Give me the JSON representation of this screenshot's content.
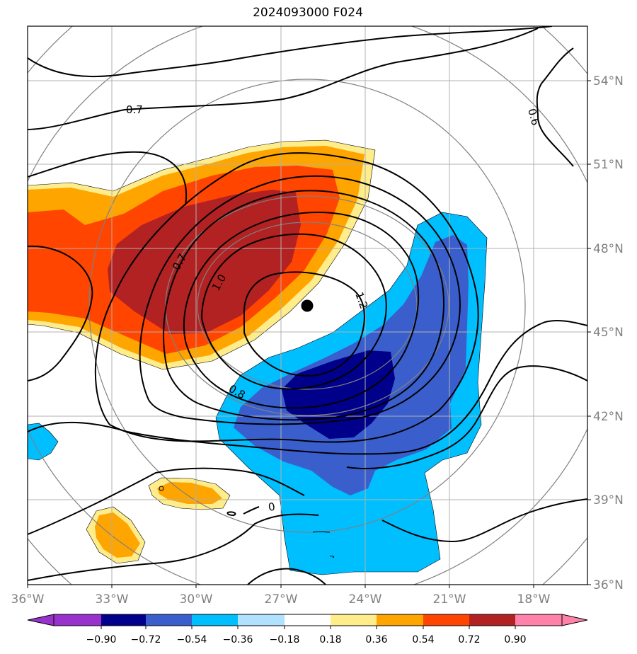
{
  "title": "2024093000 F024",
  "longitude_labels": [
    "36°W",
    "33°W",
    "30°W",
    "27°W",
    "24°W",
    "21°W",
    "18°W"
  ],
  "latitude_labels": [
    "54°N",
    "51°N",
    "48°N",
    "45°N",
    "42°N",
    "39°N",
    "36°N"
  ],
  "contour_labels": {
    "c07a": "0.7",
    "c06": "0.6",
    "c07b": "0.7",
    "c10": "1.0",
    "c12": "1.2",
    "c08": "0.8",
    "c0": "0"
  },
  "colorbar": {
    "tick_labels": [
      "−0.90",
      "−0.72",
      "−0.54",
      "−0.36",
      "−0.18",
      "0.18",
      "0.36",
      "0.54",
      "0.72",
      "0.90"
    ],
    "colors": [
      "#9932cc",
      "#00008b",
      "#3a5fcd",
      "#00bfff",
      "#b0e2ff",
      "#ffffff",
      "#ffec8b",
      "#ffa500",
      "#ff4500",
      "#b22222",
      "#ff82ab"
    ]
  },
  "marker": "storm-center-dot"
}
